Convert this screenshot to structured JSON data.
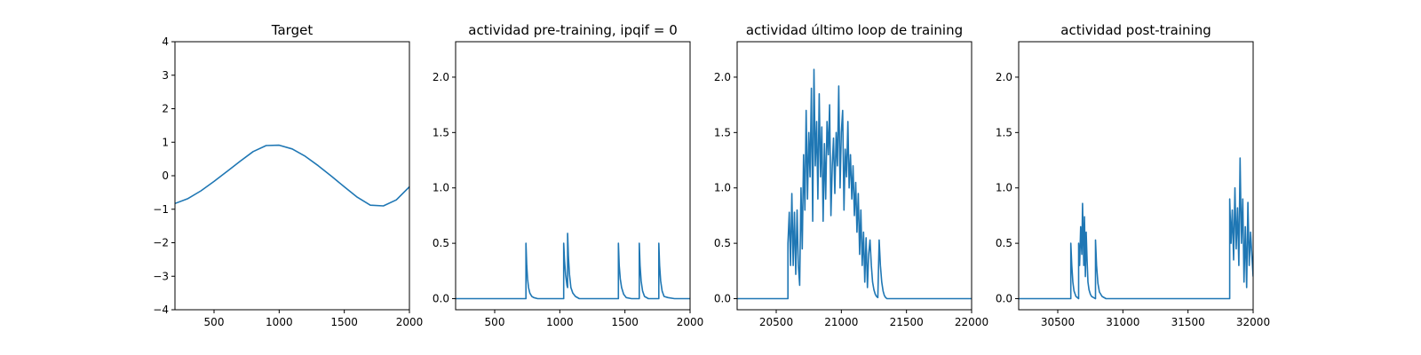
{
  "chart_data": [
    {
      "type": "line",
      "title": "Target",
      "xlabel": "",
      "ylabel": "",
      "xlim": [
        200,
        2000
      ],
      "ylim": [
        -4,
        4
      ],
      "xticks": [
        500,
        1000,
        1500,
        2000
      ],
      "xtick_labels": [
        "500",
        "1000",
        "1500",
        "2000"
      ],
      "yticks": [
        -4,
        -3,
        -2,
        -1,
        0,
        1,
        2,
        3,
        4
      ],
      "ytick_labels": [
        "−4",
        "−3",
        "−2",
        "−1",
        "0",
        "1",
        "2",
        "3",
        "4"
      ],
      "grid": false,
      "series": [
        {
          "color": "#1f77b4",
          "x": [
            200,
            300,
            400,
            500,
            600,
            700,
            800,
            900,
            1000,
            1100,
            1200,
            1300,
            1400,
            1500,
            1600,
            1700,
            1800,
            1900,
            2000
          ],
          "y": [
            -0.83,
            -0.68,
            -0.45,
            -0.17,
            0.13,
            0.43,
            0.72,
            0.9,
            0.91,
            0.8,
            0.58,
            0.3,
            -0.01,
            -0.33,
            -0.64,
            -0.88,
            -0.9,
            -0.72,
            -0.33
          ]
        }
      ]
    },
    {
      "type": "line",
      "title": "actividad pre-training, ipqif = 0",
      "xlabel": "",
      "ylabel": "",
      "xlim": [
        200,
        2000
      ],
      "ylim": [
        -0.1,
        2.32
      ],
      "xticks": [
        500,
        1000,
        1500,
        2000
      ],
      "xtick_labels": [
        "500",
        "1000",
        "1500",
        "2000"
      ],
      "yticks": [
        0,
        0.5,
        1.0,
        1.5,
        2.0
      ],
      "ytick_labels": [
        "0.0",
        "0.5",
        "1.0",
        "1.5",
        "2.0"
      ],
      "grid": false,
      "series": [
        {
          "color": "#1f77b4",
          "x": [
            200,
            740,
            740,
            746,
            752,
            760,
            770,
            785,
            800,
            830,
            1030,
            1030,
            1036,
            1044,
            1055,
            1060,
            1060,
            1066,
            1074,
            1085,
            1100,
            1120,
            1150,
            1450,
            1450,
            1456,
            1464,
            1474,
            1490,
            1510,
            1550,
            1610,
            1610,
            1616,
            1624,
            1635,
            1650,
            1680,
            1760,
            1760,
            1766,
            1774,
            1785,
            1800,
            1830,
            1880,
            2000
          ],
          "y": [
            0,
            0,
            0.5,
            0.3,
            0.18,
            0.1,
            0.05,
            0.02,
            0.01,
            0,
            0,
            0.5,
            0.35,
            0.22,
            0.12,
            0.1,
            0.59,
            0.38,
            0.22,
            0.1,
            0.05,
            0.02,
            0,
            0,
            0.5,
            0.3,
            0.18,
            0.1,
            0.04,
            0.01,
            0,
            0,
            0.5,
            0.3,
            0.16,
            0.07,
            0.02,
            0,
            0,
            0.5,
            0.3,
            0.16,
            0.07,
            0.02,
            0.01,
            0,
            0
          ]
        }
      ]
    },
    {
      "type": "line",
      "title": "actividad último loop de training",
      "xlabel": "",
      "ylabel": "",
      "xlim": [
        20200,
        22000
      ],
      "ylim": [
        -0.1,
        2.32
      ],
      "xticks": [
        20500,
        21000,
        21500,
        22000
      ],
      "xtick_labels": [
        "20500",
        "21000",
        "21500",
        "22000"
      ],
      "yticks": [
        0,
        0.5,
        1.0,
        1.5,
        2.0
      ],
      "ytick_labels": [
        "0.0",
        "0.5",
        "1.0",
        "1.5",
        "2.0"
      ],
      "grid": false,
      "series": [
        {
          "color": "#1f77b4",
          "x": [
            20200,
            20590,
            20590,
            20600,
            20610,
            20620,
            20630,
            20640,
            20650,
            20660,
            20670,
            20680,
            20690,
            20700,
            20710,
            20720,
            20730,
            20740,
            20750,
            20760,
            20770,
            20780,
            20790,
            20800,
            20810,
            20820,
            20830,
            20840,
            20850,
            20860,
            20870,
            20880,
            20890,
            20900,
            20910,
            20920,
            20930,
            20940,
            20950,
            20960,
            20970,
            20980,
            20990,
            21000,
            21010,
            21020,
            21030,
            21040,
            21050,
            21060,
            21070,
            21080,
            21090,
            21100,
            21110,
            21120,
            21130,
            21140,
            21150,
            21160,
            21170,
            21180,
            21190,
            21200,
            21210,
            21220,
            21230,
            21240,
            21250,
            21260,
            21270,
            21280,
            21290,
            21300,
            21310,
            21320,
            21330,
            21340,
            21350,
            21360,
            21370,
            21380,
            21390,
            21400,
            21420,
            21450,
            21500,
            22000
          ],
          "y": [
            0,
            0,
            0.5,
            0.78,
            0.3,
            0.95,
            0.3,
            0.78,
            0.22,
            0.8,
            0.3,
            0.12,
            1.0,
            0.45,
            1.3,
            0.8,
            1.7,
            0.9,
            1.5,
            1.1,
            1.9,
            0.7,
            2.07,
            1.2,
            1.6,
            0.9,
            1.85,
            1.1,
            1.55,
            0.7,
            1.4,
            0.9,
            1.6,
            1.3,
            1.75,
            0.75,
            1.2,
            1.45,
            0.95,
            1.5,
            1.2,
            1.92,
            1.0,
            1.5,
            1.7,
            0.8,
            1.35,
            1.1,
            1.6,
            1.0,
            1.3,
            0.9,
            1.2,
            0.75,
            1.05,
            0.6,
            0.95,
            0.4,
            0.8,
            0.3,
            0.6,
            0.15,
            0.55,
            0.1,
            0.4,
            0.53,
            0.3,
            0.15,
            0.08,
            0.04,
            0.02,
            0.01,
            0.53,
            0.3,
            0.15,
            0.07,
            0.03,
            0.01,
            0,
            0,
            0,
            0,
            0,
            0,
            0,
            0,
            0,
            0
          ]
        }
      ]
    },
    {
      "type": "line",
      "title": "actividad post-training",
      "xlabel": "",
      "ylabel": "",
      "xlim": [
        30200,
        32000
      ],
      "ylim": [
        -0.1,
        2.32
      ],
      "xticks": [
        30500,
        31000,
        31500,
        32000
      ],
      "xtick_labels": [
        "30500",
        "31000",
        "31500",
        "32000"
      ],
      "yticks": [
        0,
        0.5,
        1.0,
        1.5,
        2.0
      ],
      "ytick_labels": [
        "0.0",
        "0.5",
        "1.0",
        "1.5",
        "2.0"
      ],
      "grid": false,
      "series": [
        {
          "color": "#1f77b4",
          "x": [
            30200,
            30600,
            30600,
            30608,
            30616,
            30625,
            30640,
            30660,
            30660,
            30668,
            30676,
            30685,
            30690,
            30700,
            30705,
            30712,
            30718,
            30725,
            30732,
            30740,
            30750,
            30760,
            30775,
            30790,
            30790,
            30798,
            30808,
            30820,
            30840,
            30870,
            31820,
            31820,
            31830,
            31840,
            31850,
            31860,
            31870,
            31880,
            31890,
            31900,
            31910,
            31920,
            31930,
            31940,
            31950,
            31960,
            31970,
            31980,
            31990,
            32000
          ],
          "y": [
            0,
            0,
            0.5,
            0.3,
            0.15,
            0.07,
            0.02,
            0,
            0.5,
            0.3,
            0.65,
            0.4,
            0.86,
            0.3,
            0.74,
            0.2,
            0.6,
            0.35,
            0.15,
            0.08,
            0.04,
            0.02,
            0.01,
            0,
            0.53,
            0.3,
            0.14,
            0.06,
            0.02,
            0,
            0,
            0.9,
            0.5,
            0.8,
            0.35,
            1.0,
            0.45,
            0.82,
            0.3,
            1.27,
            0.5,
            0.9,
            0.15,
            0.65,
            0.1,
            0.87,
            0.3,
            0.6,
            0.4,
            0.2
          ]
        }
      ]
    }
  ]
}
